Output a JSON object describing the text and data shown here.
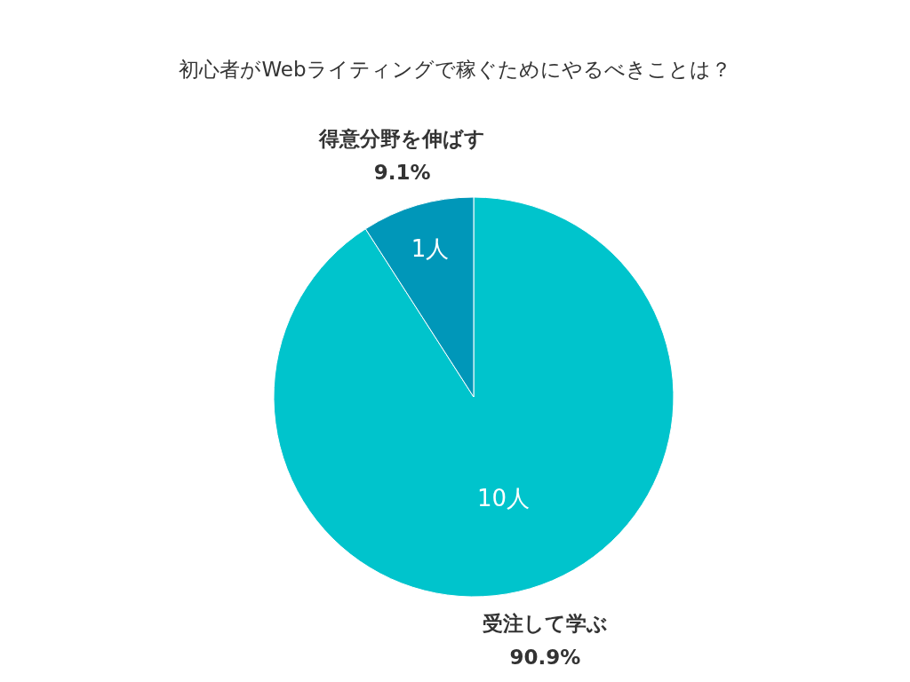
{
  "chart_data": {
    "type": "pie",
    "title": "初心者がWebライティングで稼ぐためにやるべきことは？",
    "categories": [
      "受注して学ぶ",
      "得意分野を伸ばす"
    ],
    "values": [
      10,
      1
    ],
    "colors": [
      "#00c4cc",
      "#0097b9"
    ],
    "value_labels": [
      "10人",
      "1人"
    ],
    "annotations": [
      {
        "text": "90.9%",
        "x": "受注して学ぶ"
      },
      {
        "text": "9.1%",
        "x": "得意分野を伸ばす"
      }
    ]
  }
}
